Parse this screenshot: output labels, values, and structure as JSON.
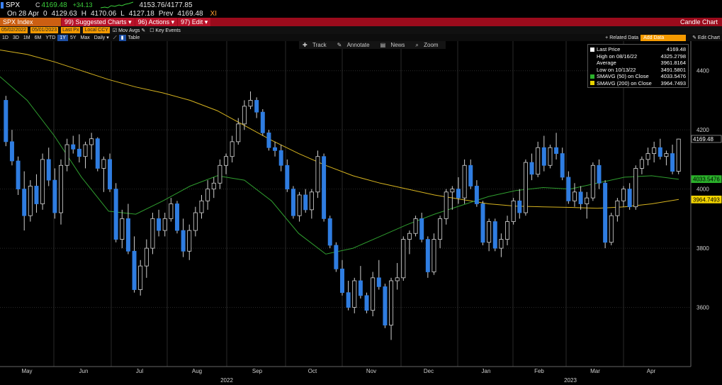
{
  "security": {
    "ticker": "SPX",
    "c_label": "C",
    "last": "4169.48",
    "change": "+34.13",
    "range": "4153.76/4177.85",
    "date": "On 28 Apr",
    "open_label": "0",
    "open": "4129.63",
    "high_label": "H",
    "high": "4170.06",
    "low_label": "L",
    "low": "4127.18",
    "prev_label": "Prev",
    "prev": "4169.48",
    "exch": "XI"
  },
  "toolbar": {
    "index": "SPX Index",
    "suggested": "Suggested Charts",
    "actions": "Actions",
    "edit": "Edit",
    "title": "Candle Chart",
    "suggested_num": "99",
    "actions_num": "96",
    "edit_num": "97"
  },
  "fields": {
    "start": "05/02/2022",
    "end": "05/01/2023",
    "last_px": "Last Px",
    "ccy": "Local CCY",
    "mov_avgs": "Mov Avgs",
    "key_events": "Key Events"
  },
  "ranges": {
    "items": [
      "1D",
      "3D",
      "1M",
      "6M",
      "YTD",
      "1Y",
      "5Y",
      "Max",
      "Daily"
    ],
    "selected": "1Y",
    "table": "Table",
    "related": "Related Data",
    "add_data": "Add Data",
    "edit_chart": "Edit Chart"
  },
  "tools": {
    "track": "Track",
    "annotate": "Annotate",
    "news": "News",
    "zoom": "Zoom"
  },
  "legend": [
    {
      "label": "Last Price",
      "value": "4169.48",
      "color": "#ffffff"
    },
    {
      "label": "High on 08/16/22",
      "value": "4325.2798",
      "color": ""
    },
    {
      "label": "Average",
      "value": "3961.8164",
      "color": ""
    },
    {
      "label": "Low on 10/13/22",
      "value": "3491.5801",
      "color": ""
    },
    {
      "label": "SMAVG (50)  on Close",
      "value": "4033.5476",
      "color": "#2bb22b"
    },
    {
      "label": "SMAVG (200)  on Close",
      "value": "3964.7493",
      "color": "#e6d200"
    }
  ],
  "chart_data": {
    "type": "candlestick",
    "ylim": [
      3400,
      4500
    ],
    "yticks": [
      3600,
      3800,
      4000,
      4200,
      4400
    ],
    "x_months": [
      "May",
      "Jun",
      "Jul",
      "Aug",
      "Sep",
      "Oct",
      "Nov",
      "Dec",
      "Jan",
      "Feb",
      "Mar",
      "Apr"
    ],
    "year_labels": [
      "2022",
      "2023"
    ],
    "series": [
      {
        "name": "SMAVG (200) on Close",
        "color": "#d6b31f",
        "x": [
          0,
          10,
          20,
          30,
          40,
          50,
          60,
          70,
          80,
          90,
          100,
          110,
          120,
          130,
          140,
          150,
          160,
          170,
          180,
          190,
          200,
          210,
          220,
          230,
          240,
          250
        ],
        "values": [
          4470,
          4455,
          4430,
          4400,
          4370,
          4345,
          4325,
          4300,
          4265,
          4215,
          4165,
          4120,
          4080,
          4045,
          4020,
          4000,
          3980,
          3965,
          3950,
          3942,
          3940,
          3938,
          3935,
          3940,
          3950,
          3965
        ]
      },
      {
        "name": "SMAVG (50) on Close",
        "color": "#2f9e2f",
        "x": [
          0,
          10,
          20,
          30,
          40,
          50,
          60,
          70,
          80,
          90,
          100,
          110,
          120,
          130,
          140,
          150,
          160,
          170,
          180,
          190,
          200,
          210,
          220,
          230,
          240,
          250
        ],
        "values": [
          4380,
          4300,
          4180,
          4040,
          3925,
          3915,
          3960,
          4010,
          4045,
          4030,
          3960,
          3850,
          3780,
          3800,
          3840,
          3880,
          3915,
          3945,
          3975,
          3995,
          4005,
          4000,
          4020,
          4040,
          4045,
          4033
        ]
      }
    ],
    "candles": [
      [
        4300,
        4315,
        4145,
        4160
      ],
      [
        4160,
        4200,
        4080,
        4095
      ],
      [
        4095,
        4110,
        3980,
        4000
      ],
      [
        4000,
        4060,
        3860,
        3910
      ],
      [
        3910,
        4030,
        3890,
        4010
      ],
      [
        4010,
        4050,
        3920,
        3950
      ],
      [
        3950,
        4120,
        3930,
        4100
      ],
      [
        4100,
        4140,
        4010,
        4030
      ],
      [
        4030,
        4070,
        3900,
        3920
      ],
      [
        3920,
        4100,
        3880,
        4080
      ],
      [
        4080,
        4170,
        4060,
        4150
      ],
      [
        4150,
        4180,
        4120,
        4135
      ],
      [
        4135,
        4185,
        4090,
        4110
      ],
      [
        4110,
        4160,
        4070,
        4150
      ],
      [
        4150,
        4190,
        4100,
        4170
      ],
      [
        4170,
        4175,
        4060,
        4070
      ],
      [
        4070,
        4110,
        3990,
        4100
      ],
      [
        4100,
        4120,
        3990,
        4000
      ],
      [
        4000,
        4020,
        3820,
        3830
      ],
      [
        3830,
        3930,
        3800,
        3900
      ],
      [
        3900,
        3950,
        3780,
        3790
      ],
      [
        3790,
        3840,
        3650,
        3660
      ],
      [
        3660,
        3760,
        3640,
        3740
      ],
      [
        3740,
        3830,
        3700,
        3800
      ],
      [
        3800,
        3920,
        3780,
        3900
      ],
      [
        3900,
        3930,
        3840,
        3860
      ],
      [
        3860,
        3920,
        3840,
        3900
      ],
      [
        3900,
        3970,
        3890,
        3950
      ],
      [
        3950,
        3960,
        3850,
        3860
      ],
      [
        3860,
        3900,
        3770,
        3790
      ],
      [
        3790,
        3880,
        3760,
        3860
      ],
      [
        3860,
        3940,
        3840,
        3920
      ],
      [
        3920,
        3980,
        3900,
        3960
      ],
      [
        3960,
        4030,
        3930,
        4000
      ],
      [
        4000,
        4040,
        3970,
        4020
      ],
      [
        4020,
        4100,
        4000,
        4080
      ],
      [
        4080,
        4120,
        4050,
        4110
      ],
      [
        4110,
        4180,
        4090,
        4160
      ],
      [
        4160,
        4240,
        4150,
        4220
      ],
      [
        4220,
        4300,
        4200,
        4280
      ],
      [
        4280,
        4330,
        4270,
        4300
      ],
      [
        4300,
        4310,
        4240,
        4260
      ],
      [
        4260,
        4270,
        4180,
        4190
      ],
      [
        4190,
        4200,
        4130,
        4140
      ],
      [
        4140,
        4160,
        4110,
        4130
      ],
      [
        4130,
        4150,
        4060,
        4080
      ],
      [
        4080,
        4100,
        3990,
        4000
      ],
      [
        4000,
        4010,
        3900,
        3910
      ],
      [
        3910,
        3990,
        3890,
        3980
      ],
      [
        3980,
        4000,
        3920,
        3930
      ],
      [
        3930,
        4000,
        3900,
        3990
      ],
      [
        3990,
        4130,
        3970,
        4110
      ],
      [
        4110,
        4120,
        3890,
        3900
      ],
      [
        3900,
        3910,
        3800,
        3810
      ],
      [
        3810,
        3820,
        3720,
        3730
      ],
      [
        3730,
        3760,
        3640,
        3650
      ],
      [
        3650,
        3690,
        3590,
        3600
      ],
      [
        3600,
        3700,
        3580,
        3690
      ],
      [
        3690,
        3740,
        3630,
        3640
      ],
      [
        3640,
        3650,
        3580,
        3590
      ],
      [
        3590,
        3720,
        3570,
        3700
      ],
      [
        3700,
        3760,
        3660,
        3670
      ],
      [
        3670,
        3680,
        3530,
        3540
      ],
      [
        3540,
        3700,
        3490,
        3690
      ],
      [
        3690,
        3750,
        3660,
        3700
      ],
      [
        3700,
        3840,
        3690,
        3830
      ],
      [
        3830,
        3860,
        3780,
        3850
      ],
      [
        3850,
        3910,
        3840,
        3900
      ],
      [
        3900,
        3920,
        3820,
        3830
      ],
      [
        3830,
        3840,
        3700,
        3720
      ],
      [
        3720,
        3850,
        3710,
        3830
      ],
      [
        3830,
        3910,
        3800,
        3900
      ],
      [
        3900,
        4000,
        3880,
        3990
      ],
      [
        3990,
        4010,
        3930,
        4000
      ],
      [
        4000,
        4040,
        3950,
        3970
      ],
      [
        3970,
        4100,
        3950,
        4080
      ],
      [
        4080,
        4100,
        4000,
        4010
      ],
      [
        4010,
        4030,
        3940,
        3950
      ],
      [
        3950,
        3960,
        3810,
        3820
      ],
      [
        3820,
        3900,
        3790,
        3890
      ],
      [
        3890,
        3900,
        3790,
        3800
      ],
      [
        3800,
        3850,
        3770,
        3830
      ],
      [
        3830,
        3910,
        3810,
        3890
      ],
      [
        3890,
        3970,
        3880,
        3960
      ],
      [
        3960,
        4000,
        3900,
        3920
      ],
      [
        3920,
        4100,
        3910,
        4090
      ],
      [
        4090,
        4120,
        4030,
        4050
      ],
      [
        4050,
        4160,
        4040,
        4140
      ],
      [
        4140,
        4180,
        4060,
        4080
      ],
      [
        4080,
        4150,
        4070,
        4140
      ],
      [
        4140,
        4190,
        4100,
        4120
      ],
      [
        4120,
        4140,
        4030,
        4040
      ],
      [
        4040,
        4060,
        3950,
        3960
      ],
      [
        3960,
        4020,
        3940,
        3990
      ],
      [
        3990,
        4010,
        3930,
        3950
      ],
      [
        3950,
        3990,
        3900,
        3970
      ],
      [
        3970,
        4090,
        3960,
        4080
      ],
      [
        4080,
        4100,
        4000,
        4020
      ],
      [
        4020,
        4030,
        3800,
        3820
      ],
      [
        3820,
        3920,
        3810,
        3910
      ],
      [
        3910,
        3970,
        3890,
        3960
      ],
      [
        3960,
        4010,
        3940,
        4000
      ],
      [
        4000,
        4020,
        3930,
        3940
      ],
      [
        3940,
        4080,
        3930,
        4070
      ],
      [
        4070,
        4110,
        4050,
        4100
      ],
      [
        4100,
        4140,
        4080,
        4120
      ],
      [
        4120,
        4160,
        4090,
        4140
      ],
      [
        4140,
        4170,
        4100,
        4110
      ],
      [
        4110,
        4130,
        4080,
        4120
      ],
      [
        4120,
        4150,
        4050,
        4060
      ],
      [
        4060,
        4170,
        4050,
        4169
      ]
    ]
  }
}
